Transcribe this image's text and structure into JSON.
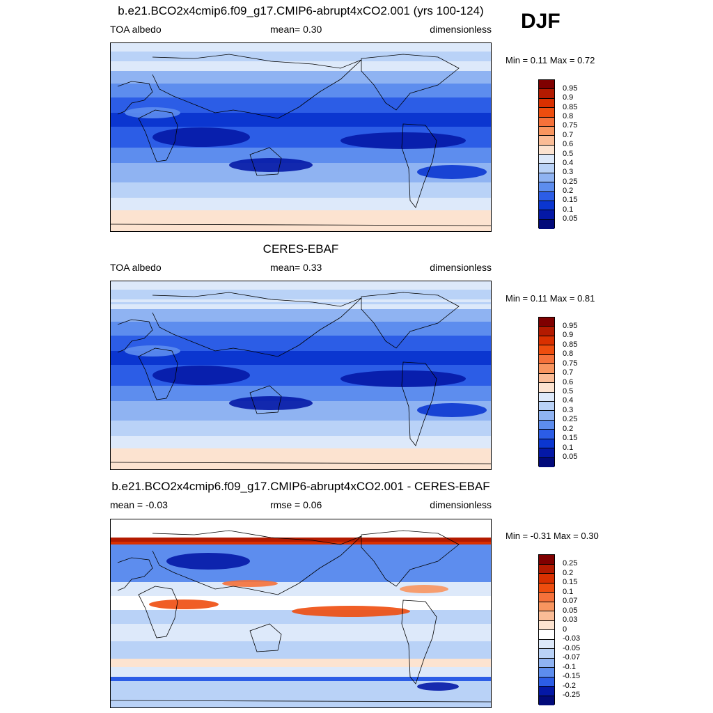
{
  "header": {
    "season": "DJF"
  },
  "panels": [
    {
      "title": "b.e21.BCO2x4cmip6.f09_g17.CMIP6-abrupt4xCO2.001 (yrs 100-124)",
      "left_label": "TOA albedo",
      "center_label": "mean=   0.30",
      "right_label": "dimensionless",
      "minmax": "Min =   0.11 Max =   0.72",
      "levels": [
        "0.95",
        "0.9",
        "0.85",
        "0.8",
        "0.75",
        "0.7",
        "0.6",
        "0.5",
        "0.4",
        "0.3",
        "0.25",
        "0.2",
        "0.15",
        "0.1",
        "0.05"
      ],
      "colors": [
        "#7f0000",
        "#b31a00",
        "#d93000",
        "#ee4d0e",
        "#f5713a",
        "#f8955f",
        "#fabc96",
        "#fce3d0",
        "#dde9fa",
        "#b9d2f7",
        "#8fb3f2",
        "#5d8dee",
        "#2c5de6",
        "#0b36d0",
        "#0418a6",
        "#020a7a"
      ]
    },
    {
      "title": "CERES-EBAF",
      "left_label": "TOA albedo",
      "center_label": "mean=   0.33",
      "right_label": "dimensionless",
      "minmax": "Min =   0.11 Max =   0.81",
      "levels": [
        "0.95",
        "0.9",
        "0.85",
        "0.8",
        "0.75",
        "0.7",
        "0.6",
        "0.5",
        "0.4",
        "0.3",
        "0.25",
        "0.2",
        "0.15",
        "0.1",
        "0.05"
      ],
      "colors": [
        "#7f0000",
        "#b31a00",
        "#d93000",
        "#ee4d0e",
        "#f5713a",
        "#f8955f",
        "#fabc96",
        "#fce3d0",
        "#dde9fa",
        "#b9d2f7",
        "#8fb3f2",
        "#5d8dee",
        "#2c5de6",
        "#0b36d0",
        "#0418a6",
        "#020a7a"
      ]
    },
    {
      "title": "b.e21.BCO2x4cmip6.f09_g17.CMIP6-abrupt4xCO2.001 - CERES-EBAF",
      "left_label": "mean =  -0.03",
      "center_label": "rmse =   0.06",
      "right_label": "dimensionless",
      "minmax": "Min =  -0.31 Max =   0.30",
      "levels": [
        "0.25",
        "0.2",
        "0.15",
        "0.1",
        "0.07",
        "0.05",
        "0.03",
        "0",
        "-0.03",
        "-0.05",
        "-0.07",
        "-0.1",
        "-0.15",
        "-0.2",
        "-0.25"
      ],
      "colors": [
        "#7f0000",
        "#b31a00",
        "#d93000",
        "#ee4d0e",
        "#f5713a",
        "#f8955f",
        "#fabc96",
        "#fce3d0",
        "#ffffff",
        "#dde9fa",
        "#b9d2f7",
        "#8fb3f2",
        "#5d8dee",
        "#2c5de6",
        "#0418a6",
        "#020a7a"
      ]
    }
  ]
}
